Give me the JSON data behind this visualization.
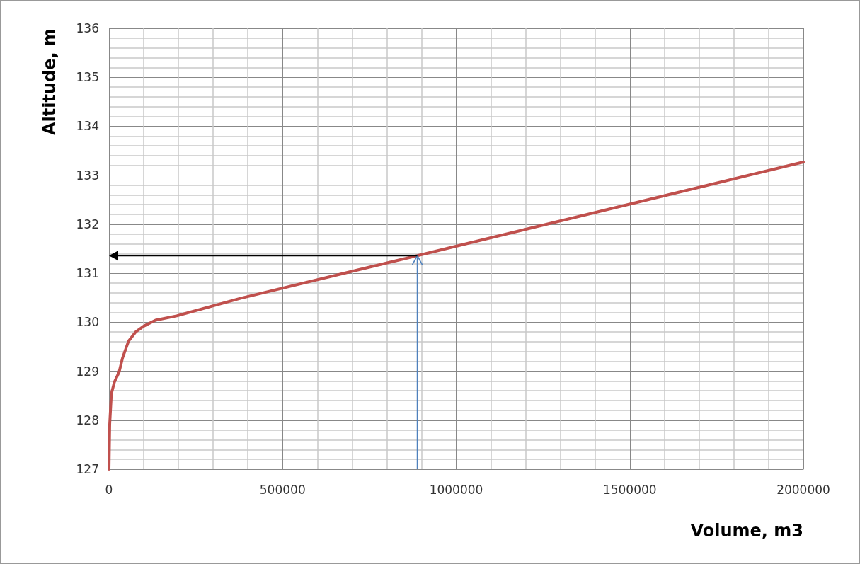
{
  "chart_data": {
    "type": "line",
    "xlabel": "Volume, m3",
    "ylabel": "Altitude, m",
    "series": [
      {
        "color": "#c0504d",
        "x": [
          0,
          2000,
          6800,
          15600,
          29000,
          39000,
          56000,
          76600,
          100000,
          134000,
          195000,
          380000,
          888000,
          2000000
        ],
        "values": [
          127,
          127.91,
          128.54,
          128.78,
          128.98,
          129.27,
          129.61,
          129.8,
          129.92,
          130.04,
          130.13,
          130.49,
          131.36,
          133.27
        ]
      }
    ],
    "xlim": [
      0,
      2000000
    ],
    "xticks": [
      0,
      500000,
      1000000,
      1500000,
      2000000
    ],
    "ylim": [
      127,
      136
    ],
    "yticks": [
      127,
      128,
      129,
      130,
      131,
      132,
      133,
      134,
      135,
      136
    ],
    "ref_lines": [
      {
        "axis": "x",
        "value": 888000,
        "color": "#4f81bd"
      },
      {
        "axis": "y",
        "value": 131.36,
        "color": "#000000"
      }
    ],
    "grid": true,
    "marker": "none",
    "line_style": "solid"
  }
}
